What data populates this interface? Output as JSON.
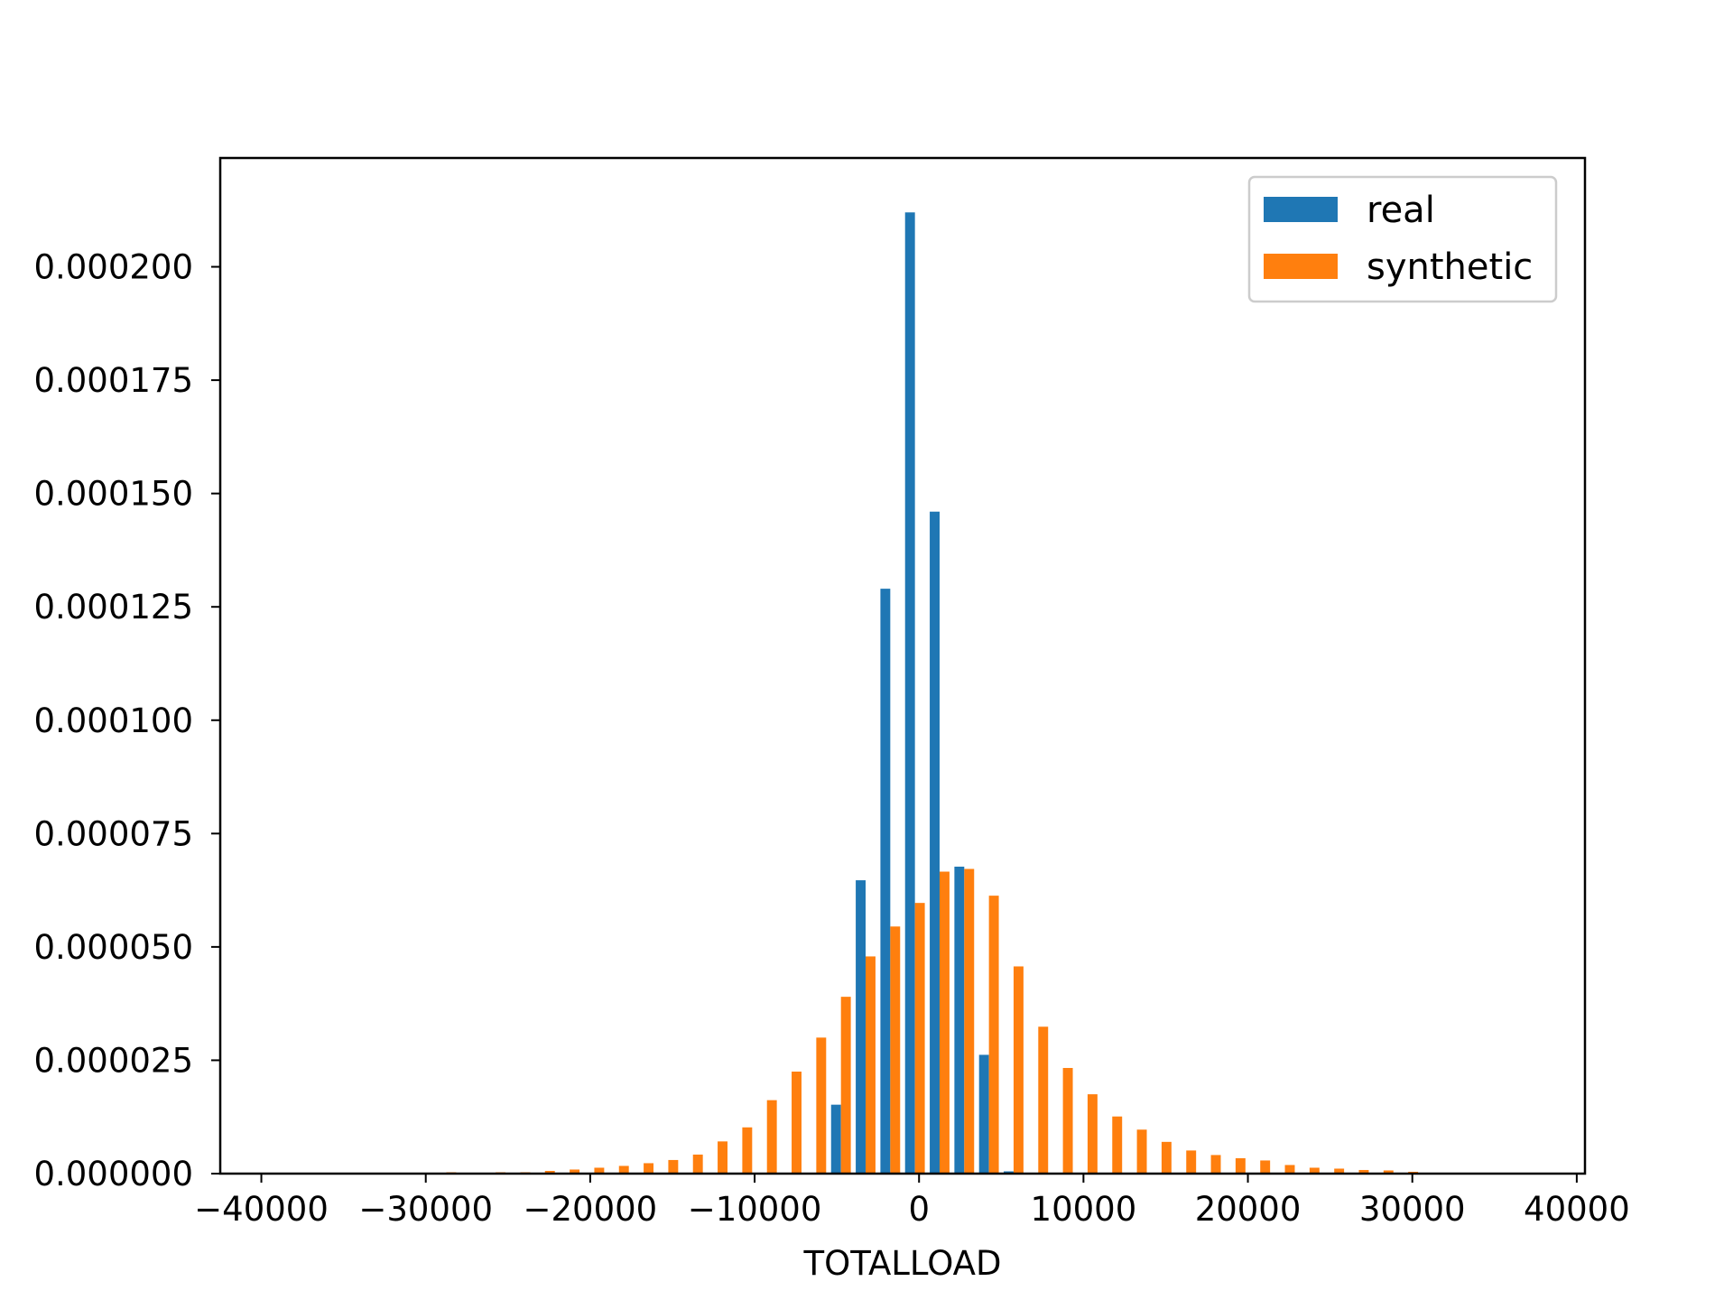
{
  "chart_data": {
    "type": "bar",
    "title": "",
    "xlabel": "TOTALLOAD",
    "ylabel": "",
    "xlim": [
      -42500,
      40500
    ],
    "ylim": [
      0,
      0.000224
    ],
    "grid": false,
    "legend_position": "top-right",
    "x_ticks": [
      -40000,
      -30000,
      -20000,
      -10000,
      0,
      10000,
      20000,
      30000,
      40000
    ],
    "x_tick_labels": [
      "−40000",
      "−30000",
      "−20000",
      "−10000",
      "0",
      "10000",
      "20000",
      "30000",
      "40000"
    ],
    "y_ticks": [
      0,
      2.5e-05,
      5e-05,
      7.5e-05,
      0.0001,
      0.000125,
      0.00015,
      0.000175,
      0.0002
    ],
    "y_tick_labels": [
      "0.000000",
      "0.000025",
      "0.000050",
      "0.000075",
      "0.000100",
      "0.000125",
      "0.000150",
      "0.000175",
      "0.000200"
    ],
    "bin_edges": [
      -40000,
      -38500,
      -37000,
      -35500,
      -34000,
      -32500,
      -31000,
      -29500,
      -28000,
      -26500,
      -25000,
      -23500,
      -22000,
      -20500,
      -19000,
      -17500,
      -16000,
      -14500,
      -13000,
      -11500,
      -10000,
      -8500,
      -7000,
      -5500,
      -4000,
      -2500,
      -1000,
      500,
      2000,
      3500,
      5000,
      6500,
      8000,
      9500,
      11000,
      12500,
      14000,
      15500,
      17000,
      18500,
      20000,
      21500,
      23000,
      24500,
      26000,
      27500,
      29000,
      30500,
      32000,
      33500,
      35000,
      36500,
      38000
    ],
    "series": [
      {
        "name": "real",
        "color": "#1f77b4",
        "values": [
          0,
          0,
          0,
          0,
          0,
          0,
          0,
          0,
          0,
          0,
          0,
          0,
          0,
          0,
          0,
          0,
          0,
          0,
          0,
          0,
          0,
          0,
          0,
          1.52e-05,
          6.47e-05,
          0.000129,
          0.000212,
          0.000146,
          6.77e-05,
          2.62e-05,
          5e-07,
          0,
          0,
          0,
          0,
          0,
          0,
          0,
          0,
          0,
          0,
          0,
          0,
          0,
          0,
          0,
          0,
          0,
          0,
          0,
          0,
          0
        ]
      },
      {
        "name": "synthetic",
        "color": "#ff7f0e",
        "values": [
          0,
          0,
          0,
          0,
          0,
          0,
          0,
          3e-07,
          0,
          3e-07,
          3e-07,
          6e-07,
          9e-07,
          1.3e-06,
          1.7e-06,
          2.3e-06,
          3e-06,
          4.2e-06,
          7.1e-06,
          1.02e-05,
          1.62e-05,
          2.25e-05,
          3e-05,
          3.9e-05,
          4.79e-05,
          5.45e-05,
          5.97e-05,
          6.66e-05,
          6.72e-05,
          6.13e-05,
          4.57e-05,
          3.24e-05,
          2.33e-05,
          1.75e-05,
          1.26e-05,
          9.7e-06,
          7e-06,
          5.1e-06,
          4.1e-06,
          3.4e-06,
          2.9e-06,
          1.9e-06,
          1.3e-06,
          1.1e-06,
          8e-07,
          7e-07,
          4e-07,
          2e-07,
          0,
          0,
          0,
          0
        ]
      }
    ]
  }
}
